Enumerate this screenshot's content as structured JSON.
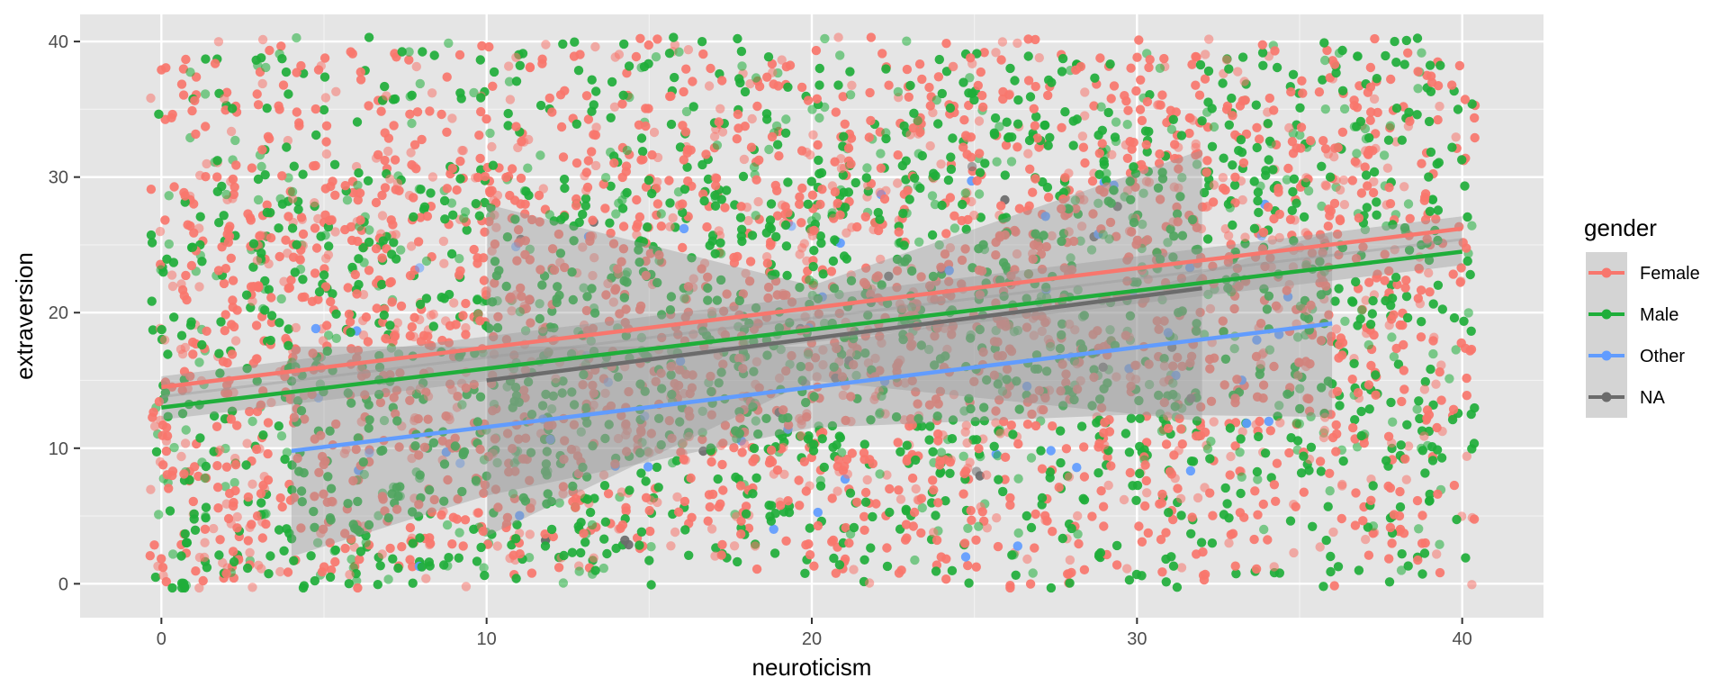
{
  "chart_data": {
    "type": "scatter",
    "xlabel": "neuroticism",
    "ylabel": "extraversion",
    "xlim": [
      -2.5,
      42.5
    ],
    "ylim": [
      -2.5,
      42
    ],
    "x_ticks": [
      0,
      10,
      20,
      30,
      40
    ],
    "y_ticks": [
      0,
      10,
      20,
      30,
      40
    ],
    "grid": true,
    "panel_background": "#e5e5e5",
    "grid_color": "#ffffff",
    "legend": {
      "title": "gender",
      "placement": "right",
      "entries": [
        {
          "name": "Female",
          "color": "#F8766D"
        },
        {
          "name": "Male",
          "color": "#1FAE3A"
        },
        {
          "name": "Other",
          "color": "#619CFF"
        },
        {
          "name": "NA",
          "color": "#6B6B6B"
        }
      ]
    },
    "series": [
      {
        "name": "Female",
        "color": "#F8766D",
        "point_count": 2600,
        "x_range": [
          0,
          40
        ],
        "y_range": [
          0,
          40
        ],
        "trend_line": {
          "x": [
            0,
            40
          ],
          "y": [
            14.5,
            26.2
          ]
        },
        "ci_band": {
          "x": [
            0,
            40
          ],
          "lower": [
            13.7,
            25.3
          ],
          "upper": [
            15.3,
            27.1
          ]
        }
      },
      {
        "name": "Male",
        "color": "#1FAE3A",
        "point_count": 2000,
        "x_range": [
          0,
          40
        ],
        "y_range": [
          0,
          40
        ],
        "trend_line": {
          "x": [
            0,
            40
          ],
          "y": [
            13.0,
            24.5
          ]
        },
        "ci_band": {
          "x": [
            0,
            40
          ],
          "lower": [
            12.1,
            23.5
          ],
          "upper": [
            13.9,
            25.5
          ]
        }
      },
      {
        "name": "Other",
        "color": "#619CFF",
        "point_count": 60,
        "x_range": [
          4,
          36
        ],
        "y_range": [
          0,
          37
        ],
        "trend_line": {
          "x": [
            4,
            36
          ],
          "y": [
            9.8,
            19.2
          ]
        },
        "ci_band": {
          "x": [
            4,
            10,
            20,
            30,
            36
          ],
          "lower": [
            2.0,
            6.5,
            11.5,
            12.5,
            12.3
          ],
          "upper": [
            17.5,
            17.5,
            17.5,
            21.5,
            26.0
          ]
        }
      },
      {
        "name": "NA",
        "color": "#6B6B6B",
        "point_count": 25,
        "x_range": [
          10,
          32
        ],
        "y_range": [
          3,
          33
        ],
        "trend_line": {
          "x": [
            10,
            32
          ],
          "y": [
            15.0,
            21.8
          ]
        },
        "ci_band": {
          "x": [
            10,
            20,
            32
          ],
          "lower": [
            3.5,
            15.0,
            12.0
          ],
          "upper": [
            28.0,
            22.0,
            32.0
          ]
        }
      }
    ]
  }
}
